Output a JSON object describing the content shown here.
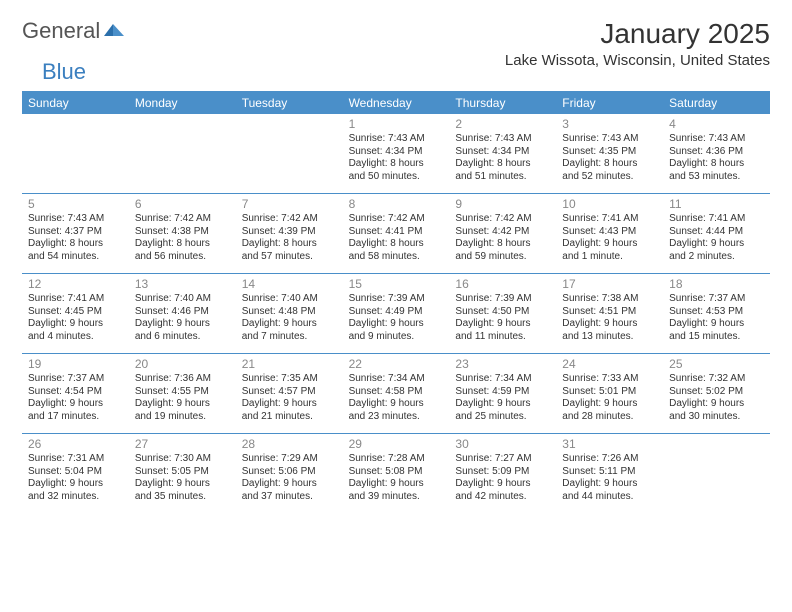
{
  "logo": {
    "general": "General",
    "blue": "Blue"
  },
  "title": "January 2025",
  "location": "Lake Wissota, Wisconsin, United States",
  "headers": [
    "Sunday",
    "Monday",
    "Tuesday",
    "Wednesday",
    "Thursday",
    "Friday",
    "Saturday"
  ],
  "colors": {
    "header_bg": "#4a8fc9",
    "header_text": "#ffffff",
    "rule": "#4a8fc9",
    "daynum": "#888888",
    "body_text": "#333333",
    "logo_gray": "#555555",
    "logo_blue": "#3b7fbf"
  },
  "weeks": [
    [
      {
        "n": "",
        "sr": "",
        "ss": "",
        "d1": "",
        "d2": ""
      },
      {
        "n": "",
        "sr": "",
        "ss": "",
        "d1": "",
        "d2": ""
      },
      {
        "n": "",
        "sr": "",
        "ss": "",
        "d1": "",
        "d2": ""
      },
      {
        "n": "1",
        "sr": "Sunrise: 7:43 AM",
        "ss": "Sunset: 4:34 PM",
        "d1": "Daylight: 8 hours",
        "d2": "and 50 minutes."
      },
      {
        "n": "2",
        "sr": "Sunrise: 7:43 AM",
        "ss": "Sunset: 4:34 PM",
        "d1": "Daylight: 8 hours",
        "d2": "and 51 minutes."
      },
      {
        "n": "3",
        "sr": "Sunrise: 7:43 AM",
        "ss": "Sunset: 4:35 PM",
        "d1": "Daylight: 8 hours",
        "d2": "and 52 minutes."
      },
      {
        "n": "4",
        "sr": "Sunrise: 7:43 AM",
        "ss": "Sunset: 4:36 PM",
        "d1": "Daylight: 8 hours",
        "d2": "and 53 minutes."
      }
    ],
    [
      {
        "n": "5",
        "sr": "Sunrise: 7:43 AM",
        "ss": "Sunset: 4:37 PM",
        "d1": "Daylight: 8 hours",
        "d2": "and 54 minutes."
      },
      {
        "n": "6",
        "sr": "Sunrise: 7:42 AM",
        "ss": "Sunset: 4:38 PM",
        "d1": "Daylight: 8 hours",
        "d2": "and 56 minutes."
      },
      {
        "n": "7",
        "sr": "Sunrise: 7:42 AM",
        "ss": "Sunset: 4:39 PM",
        "d1": "Daylight: 8 hours",
        "d2": "and 57 minutes."
      },
      {
        "n": "8",
        "sr": "Sunrise: 7:42 AM",
        "ss": "Sunset: 4:41 PM",
        "d1": "Daylight: 8 hours",
        "d2": "and 58 minutes."
      },
      {
        "n": "9",
        "sr": "Sunrise: 7:42 AM",
        "ss": "Sunset: 4:42 PM",
        "d1": "Daylight: 8 hours",
        "d2": "and 59 minutes."
      },
      {
        "n": "10",
        "sr": "Sunrise: 7:41 AM",
        "ss": "Sunset: 4:43 PM",
        "d1": "Daylight: 9 hours",
        "d2": "and 1 minute."
      },
      {
        "n": "11",
        "sr": "Sunrise: 7:41 AM",
        "ss": "Sunset: 4:44 PM",
        "d1": "Daylight: 9 hours",
        "d2": "and 2 minutes."
      }
    ],
    [
      {
        "n": "12",
        "sr": "Sunrise: 7:41 AM",
        "ss": "Sunset: 4:45 PM",
        "d1": "Daylight: 9 hours",
        "d2": "and 4 minutes."
      },
      {
        "n": "13",
        "sr": "Sunrise: 7:40 AM",
        "ss": "Sunset: 4:46 PM",
        "d1": "Daylight: 9 hours",
        "d2": "and 6 minutes."
      },
      {
        "n": "14",
        "sr": "Sunrise: 7:40 AM",
        "ss": "Sunset: 4:48 PM",
        "d1": "Daylight: 9 hours",
        "d2": "and 7 minutes."
      },
      {
        "n": "15",
        "sr": "Sunrise: 7:39 AM",
        "ss": "Sunset: 4:49 PM",
        "d1": "Daylight: 9 hours",
        "d2": "and 9 minutes."
      },
      {
        "n": "16",
        "sr": "Sunrise: 7:39 AM",
        "ss": "Sunset: 4:50 PM",
        "d1": "Daylight: 9 hours",
        "d2": "and 11 minutes."
      },
      {
        "n": "17",
        "sr": "Sunrise: 7:38 AM",
        "ss": "Sunset: 4:51 PM",
        "d1": "Daylight: 9 hours",
        "d2": "and 13 minutes."
      },
      {
        "n": "18",
        "sr": "Sunrise: 7:37 AM",
        "ss": "Sunset: 4:53 PM",
        "d1": "Daylight: 9 hours",
        "d2": "and 15 minutes."
      }
    ],
    [
      {
        "n": "19",
        "sr": "Sunrise: 7:37 AM",
        "ss": "Sunset: 4:54 PM",
        "d1": "Daylight: 9 hours",
        "d2": "and 17 minutes."
      },
      {
        "n": "20",
        "sr": "Sunrise: 7:36 AM",
        "ss": "Sunset: 4:55 PM",
        "d1": "Daylight: 9 hours",
        "d2": "and 19 minutes."
      },
      {
        "n": "21",
        "sr": "Sunrise: 7:35 AM",
        "ss": "Sunset: 4:57 PM",
        "d1": "Daylight: 9 hours",
        "d2": "and 21 minutes."
      },
      {
        "n": "22",
        "sr": "Sunrise: 7:34 AM",
        "ss": "Sunset: 4:58 PM",
        "d1": "Daylight: 9 hours",
        "d2": "and 23 minutes."
      },
      {
        "n": "23",
        "sr": "Sunrise: 7:34 AM",
        "ss": "Sunset: 4:59 PM",
        "d1": "Daylight: 9 hours",
        "d2": "and 25 minutes."
      },
      {
        "n": "24",
        "sr": "Sunrise: 7:33 AM",
        "ss": "Sunset: 5:01 PM",
        "d1": "Daylight: 9 hours",
        "d2": "and 28 minutes."
      },
      {
        "n": "25",
        "sr": "Sunrise: 7:32 AM",
        "ss": "Sunset: 5:02 PM",
        "d1": "Daylight: 9 hours",
        "d2": "and 30 minutes."
      }
    ],
    [
      {
        "n": "26",
        "sr": "Sunrise: 7:31 AM",
        "ss": "Sunset: 5:04 PM",
        "d1": "Daylight: 9 hours",
        "d2": "and 32 minutes."
      },
      {
        "n": "27",
        "sr": "Sunrise: 7:30 AM",
        "ss": "Sunset: 5:05 PM",
        "d1": "Daylight: 9 hours",
        "d2": "and 35 minutes."
      },
      {
        "n": "28",
        "sr": "Sunrise: 7:29 AM",
        "ss": "Sunset: 5:06 PM",
        "d1": "Daylight: 9 hours",
        "d2": "and 37 minutes."
      },
      {
        "n": "29",
        "sr": "Sunrise: 7:28 AM",
        "ss": "Sunset: 5:08 PM",
        "d1": "Daylight: 9 hours",
        "d2": "and 39 minutes."
      },
      {
        "n": "30",
        "sr": "Sunrise: 7:27 AM",
        "ss": "Sunset: 5:09 PM",
        "d1": "Daylight: 9 hours",
        "d2": "and 42 minutes."
      },
      {
        "n": "31",
        "sr": "Sunrise: 7:26 AM",
        "ss": "Sunset: 5:11 PM",
        "d1": "Daylight: 9 hours",
        "d2": "and 44 minutes."
      },
      {
        "n": "",
        "sr": "",
        "ss": "",
        "d1": "",
        "d2": ""
      }
    ]
  ]
}
